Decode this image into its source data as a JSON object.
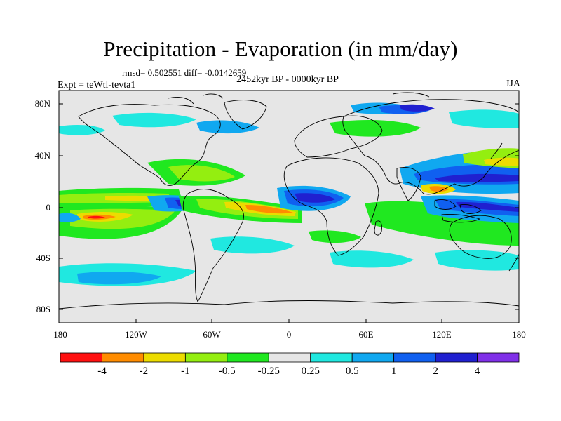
{
  "header": {
    "title": "Precipitation - Evaporation (in mm/day)",
    "stats": "rmsd= 0.502551 diff= -0.0142659",
    "subtitle": "2452kyr BP - 0000kyr BP",
    "experiment": "Expt = teWtl-tevta1",
    "season": "JJA"
  },
  "map": {
    "lat_ticks": [
      "80N",
      "40N",
      "0",
      "40S",
      "80S"
    ],
    "lon_ticks": [
      "180",
      "120W",
      "60W",
      "0",
      "60E",
      "120E",
      "180"
    ],
    "background_color": "#e6e6e6"
  },
  "colorbar": {
    "labels": [
      "-4",
      "-2",
      "-1",
      "-0.5",
      "-0.25",
      "0.25",
      "0.5",
      "1",
      "2",
      "4"
    ],
    "colors": [
      "#ff1010",
      "#ff8c00",
      "#ecdc00",
      "#94ee10",
      "#20e820",
      "#e6e6e6",
      "#20e8e0",
      "#10a8f0",
      "#1060f0",
      "#2020d0",
      "#8030e8"
    ]
  }
}
